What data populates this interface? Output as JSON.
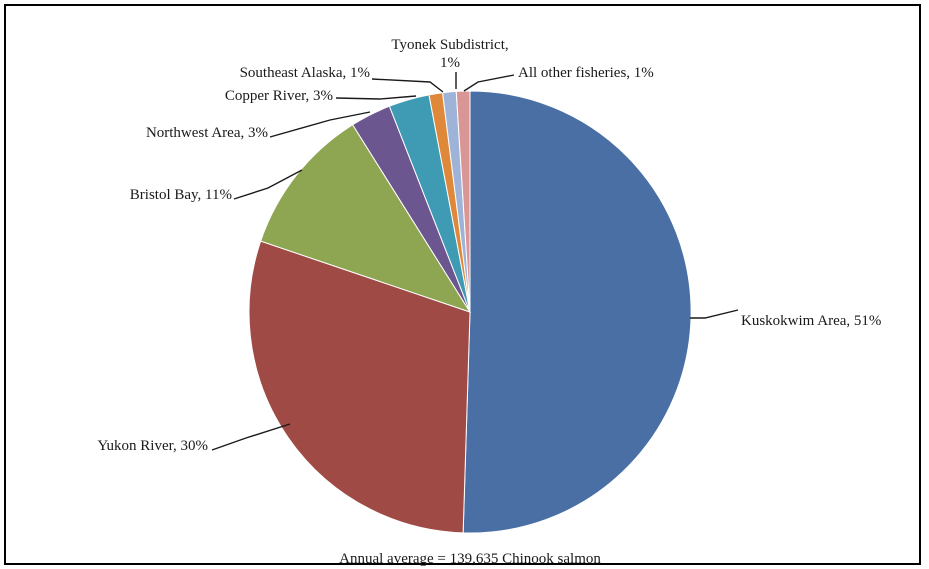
{
  "chart_data": {
    "type": "pie",
    "title": "",
    "caption": "Annual average = 139,635 Chinook salmon",
    "slices": [
      {
        "label": "Kuskokwim Area, 51%",
        "value": 51,
        "color": "#4a6fa5"
      },
      {
        "label": "Yukon River, 30%",
        "value": 30,
        "color": "#a04a46"
      },
      {
        "label": "Bristol Bay, 11%",
        "value": 11,
        "color": "#8ea552"
      },
      {
        "label": "Northwest Area, 3%",
        "value": 3,
        "color": "#6b5690"
      },
      {
        "label": "Copper River, 3%",
        "value": 3,
        "color": "#3e9bb3"
      },
      {
        "label": "Southeast Alaska, 1%",
        "value": 1,
        "color": "#e0883a"
      },
      {
        "label_lines": [
          "Tyonek Subdistrict,",
          "1%"
        ],
        "value": 1,
        "color": "#9fb3d9"
      },
      {
        "label": "All other fisheries, 1%",
        "value": 1,
        "color": "#d99694"
      }
    ]
  }
}
